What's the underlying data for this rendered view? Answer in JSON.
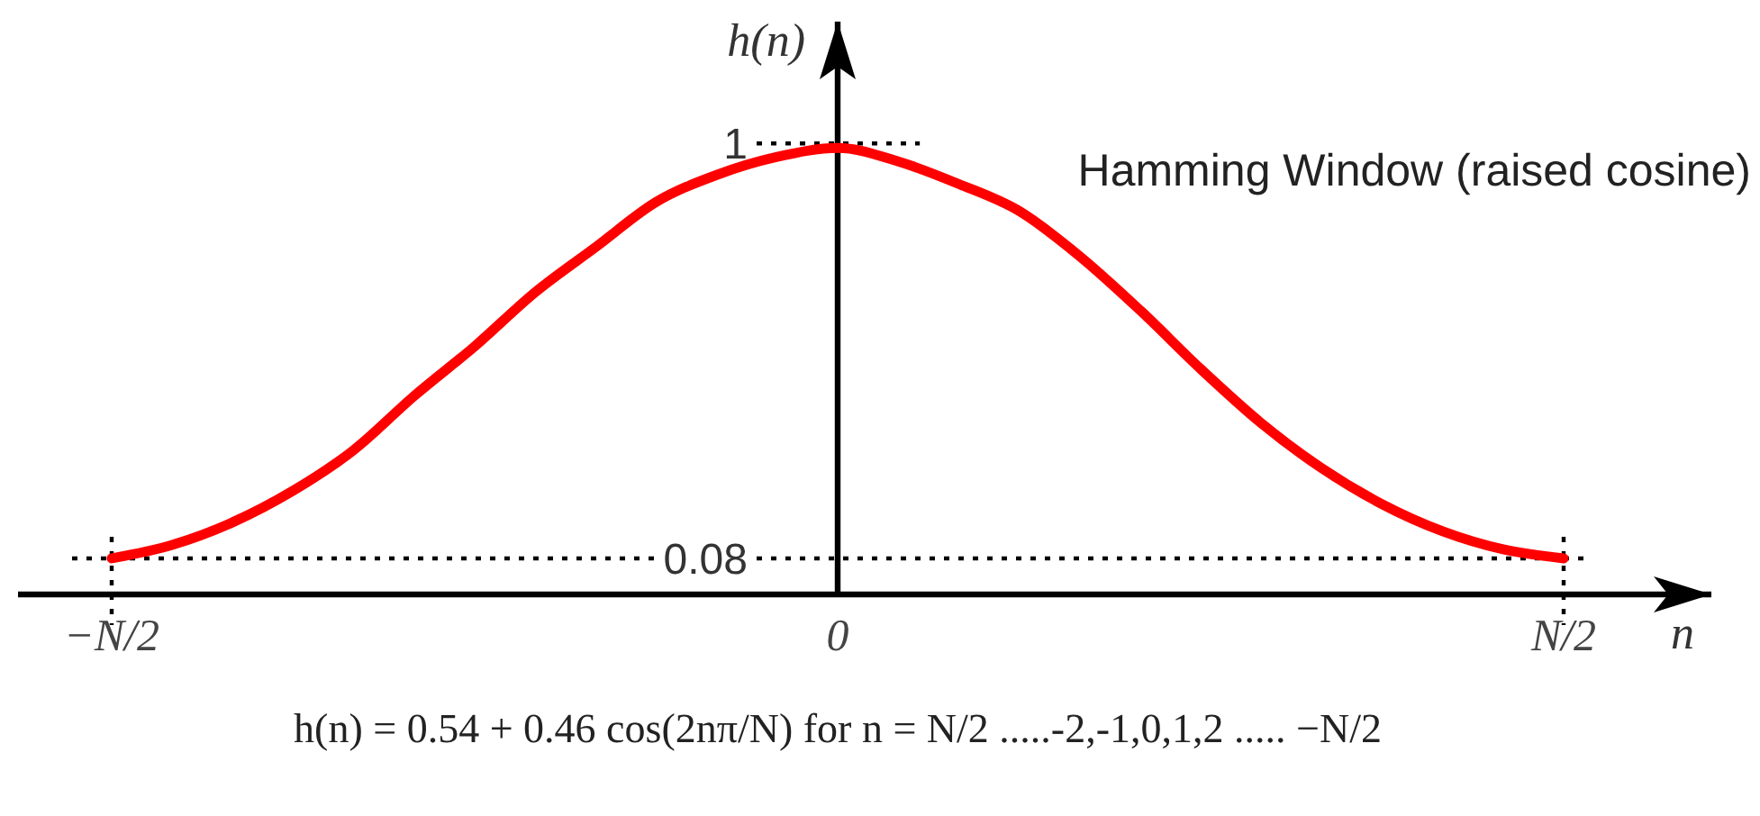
{
  "chart_data": {
    "type": "line",
    "title": "Hamming Window (raised cosine)",
    "xlabel": "n",
    "ylabel": "h(n)",
    "annotations": [
      "h(n) = 0.54 + 0.46 cos(2nπ/N) for n = N/2 .....-2,-1,0,1,2 ..... −N/2"
    ],
    "categories": [
      "−N/2",
      null,
      null,
      null,
      null,
      null,
      null,
      null,
      null,
      null,
      null,
      null,
      "0",
      null,
      null,
      null,
      null,
      null,
      null,
      null,
      null,
      null,
      null,
      null,
      "N/2"
    ],
    "values": [
      0.08,
      0.11,
      0.16,
      0.23,
      0.32,
      0.44,
      0.55,
      0.67,
      0.77,
      0.87,
      0.93,
      0.97,
      0.99,
      0.96,
      0.91,
      0.85,
      0.75,
      0.63,
      0.5,
      0.38,
      0.28,
      0.2,
      0.14,
      0.1,
      0.08
    ],
    "color": "#ff0000",
    "line_style": "solid",
    "ylim": [
      0,
      1.27
    ],
    "yticks": [
      0.08,
      1
    ],
    "ref_lines": [
      {
        "axis": "y",
        "value": 1,
        "color": "#000000",
        "line_style": "dotted"
      },
      {
        "axis": "y",
        "value": 0.08,
        "color": "#000000",
        "line_style": "dotted"
      }
    ]
  }
}
